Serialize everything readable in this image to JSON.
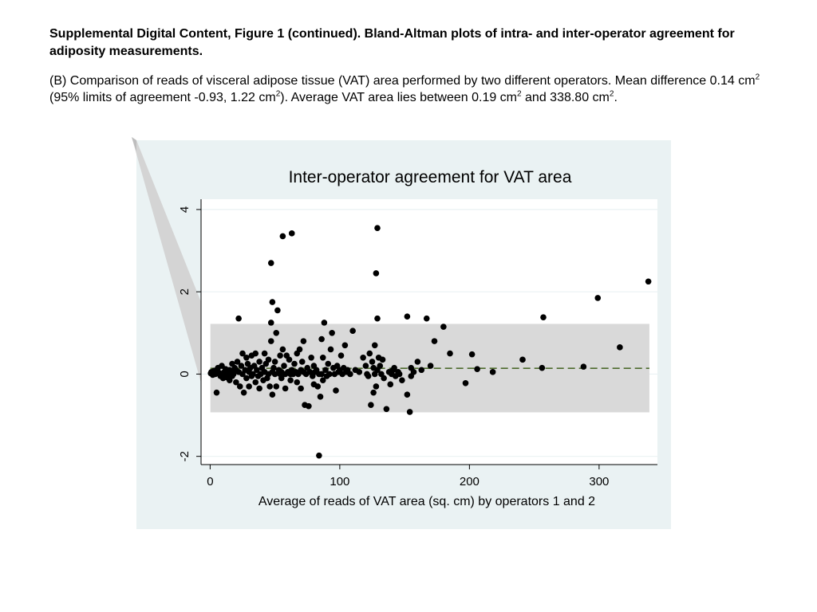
{
  "caption": {
    "heading": "Supplemental Digital Content, Figure 1 (continued). Bland-Altman plots of intra- and inter-operator agreement for adiposity measurements.",
    "p1": "(B) Comparison of reads of visceral adipose tissue (VAT) area performed by two different operators. Mean difference 0.14 cm",
    "sup1": "2",
    "p2": " (95% limits of agreement -0.93, 1.22 cm",
    "sup2": "2",
    "p3": "). Average VAT area lies between 0.19 cm",
    "sup3": "2",
    "p4": " and 338.80 cm",
    "sup4": "2",
    "p5": "."
  },
  "chart_data": {
    "type": "scatter",
    "title": "Inter-operator agreement for VAT area",
    "xlabel": "Average of reads of VAT area (sq. cm) by operators 1 and 2",
    "ylabel": "",
    "xlim": [
      -7,
      345
    ],
    "ylim": [
      -2.2,
      4.25
    ],
    "xticks": [
      0,
      100,
      200,
      300
    ],
    "yticks": [
      -2,
      0,
      2,
      4
    ],
    "grid": true,
    "mean_difference": 0.14,
    "limits_of_agreement": [
      -0.93,
      1.22
    ],
    "band_x_range": [
      0.19,
      338.8
    ],
    "colors": {
      "background": "#eaf2f3",
      "plot_area": "#ffffff",
      "band": "#d9d9d9",
      "mean_line": "#4e6b2e",
      "points": "#000000"
    },
    "points": [
      [
        0.5,
        0.02
      ],
      [
        1,
        0.05
      ],
      [
        2,
        -0.02
      ],
      [
        3,
        0.08
      ],
      [
        4,
        0.0
      ],
      [
        5,
        0.1
      ],
      [
        5,
        -0.45
      ],
      [
        6,
        0.15
      ],
      [
        7,
        0.03
      ],
      [
        8,
        -0.05
      ],
      [
        9,
        0.2
      ],
      [
        10,
        0.0
      ],
      [
        10,
        -0.1
      ],
      [
        11,
        0.05
      ],
      [
        12,
        0.12
      ],
      [
        13,
        -0.08
      ],
      [
        14,
        0.02
      ],
      [
        15,
        0.1
      ],
      [
        15,
        -0.15
      ],
      [
        16,
        0.05
      ],
      [
        17,
        0.25
      ],
      [
        17,
        -0.05
      ],
      [
        18,
        0.0
      ],
      [
        19,
        0.15
      ],
      [
        20,
        0.1
      ],
      [
        20,
        -0.2
      ],
      [
        21,
        0.3
      ],
      [
        22,
        0.05
      ],
      [
        22,
        1.35
      ],
      [
        23,
        -0.3
      ],
      [
        24,
        0.2
      ],
      [
        25,
        0.0
      ],
      [
        25,
        0.5
      ],
      [
        26,
        -0.45
      ],
      [
        27,
        0.1
      ],
      [
        28,
        0.4
      ],
      [
        28,
        -0.1
      ],
      [
        29,
        0.25
      ],
      [
        30,
        0.05
      ],
      [
        30,
        -0.3
      ],
      [
        31,
        0.15
      ],
      [
        32,
        0.45
      ],
      [
        32,
        -0.05
      ],
      [
        33,
        0.0
      ],
      [
        34,
        0.2
      ],
      [
        35,
        -0.2
      ],
      [
        35,
        0.5
      ],
      [
        36,
        0.1
      ],
      [
        37,
        -0.05
      ],
      [
        38,
        0.3
      ],
      [
        38,
        -0.35
      ],
      [
        39,
        0.0
      ],
      [
        40,
        0.15
      ],
      [
        41,
        -0.15
      ],
      [
        42,
        0.5
      ],
      [
        42,
        0.05
      ],
      [
        43,
        0.25
      ],
      [
        44,
        -0.1
      ],
      [
        45,
        0.0
      ],
      [
        45,
        0.35
      ],
      [
        46,
        -0.3
      ],
      [
        47,
        1.25
      ],
      [
        47,
        0.8
      ],
      [
        47,
        2.7
      ],
      [
        48,
        1.75
      ],
      [
        48,
        -0.5
      ],
      [
        48,
        0.05
      ],
      [
        49,
        0.15
      ],
      [
        50,
        0.3
      ],
      [
        50,
        0.0
      ],
      [
        51,
        1.0
      ],
      [
        51,
        -0.3
      ],
      [
        52,
        1.55
      ],
      [
        53,
        0.1
      ],
      [
        54,
        0.0
      ],
      [
        54,
        0.45
      ],
      [
        55,
        0.05
      ],
      [
        55,
        -0.1
      ],
      [
        56,
        0.6
      ],
      [
        56,
        3.35
      ],
      [
        57,
        0.2
      ],
      [
        58,
        0.0
      ],
      [
        58,
        -0.35
      ],
      [
        59,
        0.45
      ],
      [
        60,
        0.05
      ],
      [
        61,
        0.35
      ],
      [
        62,
        0.0
      ],
      [
        62,
        -0.15
      ],
      [
        63,
        0.1
      ],
      [
        63,
        3.42
      ],
      [
        64,
        0.0
      ],
      [
        65,
        0.25
      ],
      [
        66,
        0.05
      ],
      [
        67,
        0.5
      ],
      [
        67,
        -0.2
      ],
      [
        68,
        0.0
      ],
      [
        69,
        0.6
      ],
      [
        70,
        0.1
      ],
      [
        70,
        -0.35
      ],
      [
        71,
        0.3
      ],
      [
        72,
        0.05
      ],
      [
        72,
        0.8
      ],
      [
        73,
        -0.75
      ],
      [
        74,
        0.0
      ],
      [
        75,
        0.15
      ],
      [
        76,
        -0.78
      ],
      [
        77,
        0.05
      ],
      [
        78,
        0.4
      ],
      [
        79,
        -0.05
      ],
      [
        80,
        0.2
      ],
      [
        80,
        -0.25
      ],
      [
        81,
        0.05
      ],
      [
        82,
        0.1
      ],
      [
        83,
        -0.3
      ],
      [
        84,
        0.0
      ],
      [
        84,
        -1.98
      ],
      [
        85,
        -0.55
      ],
      [
        86,
        0.85
      ],
      [
        86,
        0.0
      ],
      [
        87,
        0.4
      ],
      [
        87,
        -0.15
      ],
      [
        88,
        1.25
      ],
      [
        89,
        0.1
      ],
      [
        90,
        -0.05
      ],
      [
        91,
        0.25
      ],
      [
        92,
        0.0
      ],
      [
        93,
        0.6
      ],
      [
        94,
        1.0
      ],
      [
        95,
        0.15
      ],
      [
        96,
        0.0
      ],
      [
        97,
        -0.4
      ],
      [
        98,
        0.2
      ],
      [
        99,
        0.05
      ],
      [
        100,
        0.1
      ],
      [
        101,
        0.45
      ],
      [
        102,
        0.0
      ],
      [
        103,
        0.15
      ],
      [
        104,
        0.7
      ],
      [
        105,
        0.05
      ],
      [
        106,
        0.1
      ],
      [
        108,
        0.0
      ],
      [
        110,
        1.05
      ],
      [
        112,
        0.1
      ],
      [
        115,
        0.05
      ],
      [
        118,
        0.4
      ],
      [
        120,
        0.2
      ],
      [
        121,
        0.0
      ],
      [
        122,
        -0.05
      ],
      [
        123,
        0.5
      ],
      [
        124,
        -0.75
      ],
      [
        125,
        0.3
      ],
      [
        126,
        0.15
      ],
      [
        126,
        -0.45
      ],
      [
        127,
        0.7
      ],
      [
        127,
        0.0
      ],
      [
        128,
        -0.3
      ],
      [
        128,
        2.45
      ],
      [
        129,
        0.1
      ],
      [
        129,
        3.55
      ],
      [
        129,
        1.35
      ],
      [
        130,
        0.4
      ],
      [
        131,
        0.2
      ],
      [
        132,
        0.0
      ],
      [
        133,
        0.35
      ],
      [
        134,
        -0.1
      ],
      [
        136,
        -0.85
      ],
      [
        138,
        0.05
      ],
      [
        139,
        -0.25
      ],
      [
        140,
        0.0
      ],
      [
        141,
        0.1
      ],
      [
        142,
        0.15
      ],
      [
        143,
        -0.05
      ],
      [
        145,
        0.05
      ],
      [
        146,
        0.0
      ],
      [
        148,
        -0.15
      ],
      [
        152,
        1.4
      ],
      [
        152,
        -0.5
      ],
      [
        154,
        -0.92
      ],
      [
        155,
        0.15
      ],
      [
        155,
        -0.05
      ],
      [
        157,
        0.05
      ],
      [
        160,
        0.3
      ],
      [
        163,
        0.1
      ],
      [
        167,
        1.35
      ],
      [
        170,
        0.2
      ],
      [
        173,
        0.8
      ],
      [
        180,
        1.15
      ],
      [
        185,
        0.5
      ],
      [
        197,
        -0.22
      ],
      [
        202,
        0.48
      ],
      [
        206,
        0.12
      ],
      [
        218,
        0.05
      ],
      [
        241,
        0.35
      ],
      [
        256,
        0.15
      ],
      [
        257,
        1.38
      ],
      [
        288,
        0.18
      ],
      [
        299,
        1.85
      ],
      [
        316,
        0.65
      ],
      [
        338,
        2.25
      ]
    ]
  }
}
